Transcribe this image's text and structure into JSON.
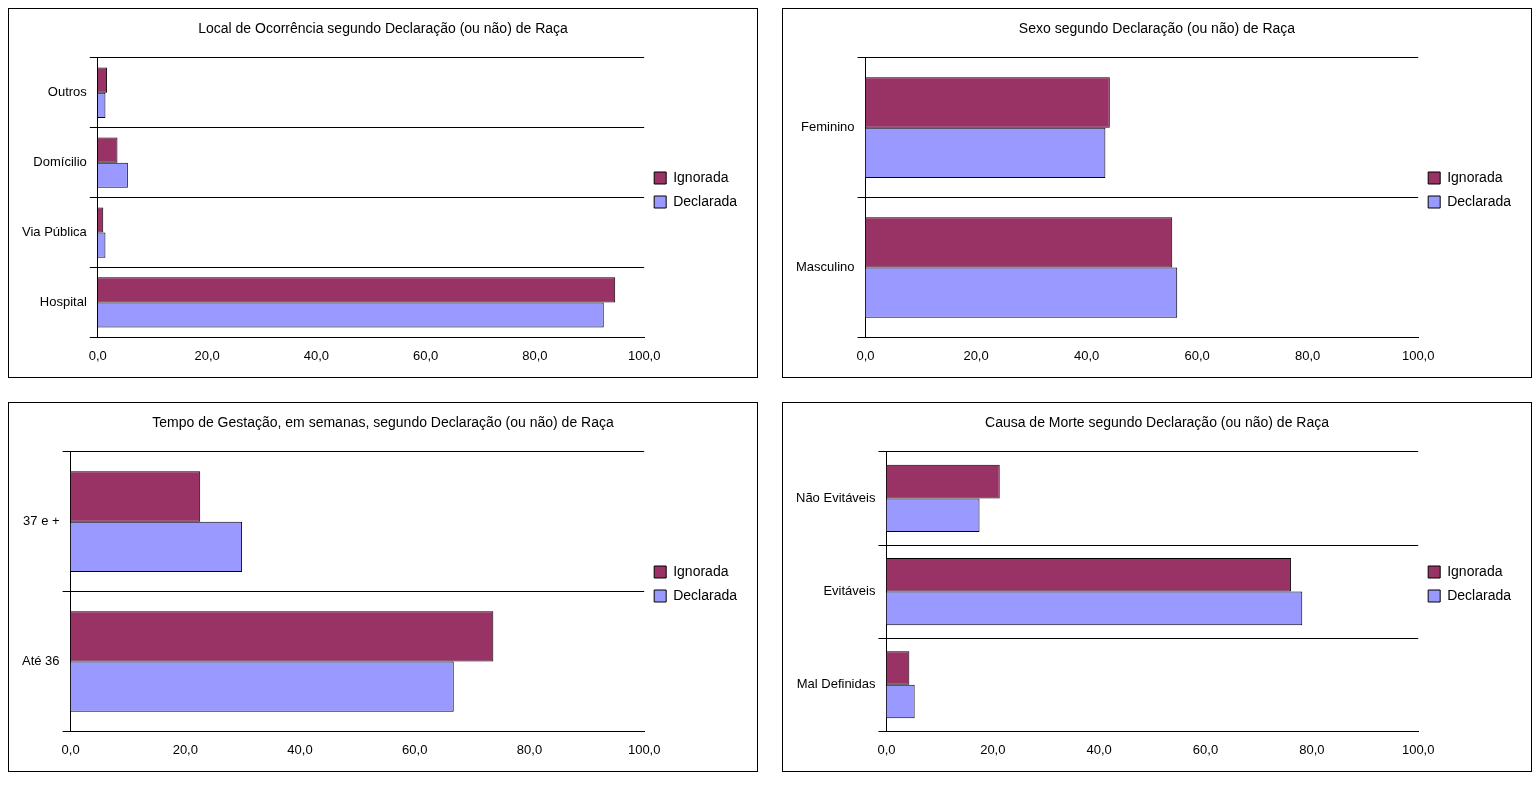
{
  "chart_data": [
    {
      "type": "bar",
      "orientation": "horizontal",
      "title": "Local de Ocorrência segundo Declaração (ou não) de Raça",
      "categories": [
        "Outros",
        "Domícilio",
        "Via Pública",
        "Hospital"
      ],
      "series": [
        {
          "name": "Ignorada",
          "color": "#993366",
          "values": [
            1.7,
            3.6,
            1.0,
            94.7
          ]
        },
        {
          "name": "Declarada",
          "color": "#9999ff",
          "values": [
            1.4,
            5.5,
            1.4,
            92.6
          ]
        }
      ],
      "xlim": [
        0,
        100
      ],
      "xticks": [
        {
          "value": 0,
          "label": "0,0"
        },
        {
          "value": 20,
          "label": "20,0"
        },
        {
          "value": 40,
          "label": "40,0"
        },
        {
          "value": 60,
          "label": "60,0"
        },
        {
          "value": 80,
          "label": "80,0"
        },
        {
          "value": 100,
          "label": "100,0"
        }
      ],
      "grid": "y",
      "legend": "right"
    },
    {
      "type": "bar",
      "orientation": "horizontal",
      "title": "Sexo segundo Declaração (ou não) de Raça",
      "categories": [
        "Feminino",
        "Masculino"
      ],
      "series": [
        {
          "name": "Ignorada",
          "color": "#993366",
          "values": [
            44.2,
            55.5
          ]
        },
        {
          "name": "Declarada",
          "color": "#9999ff",
          "values": [
            43.4,
            56.4
          ]
        }
      ],
      "xlim": [
        0,
        100
      ],
      "xticks": [
        {
          "value": 0,
          "label": "0,0"
        },
        {
          "value": 20,
          "label": "20,0"
        },
        {
          "value": 40,
          "label": "40,0"
        },
        {
          "value": 60,
          "label": "60,0"
        },
        {
          "value": 80,
          "label": "80,0"
        },
        {
          "value": 100,
          "label": "100,0"
        }
      ],
      "grid": "y",
      "legend": "right"
    },
    {
      "type": "bar",
      "orientation": "horizontal",
      "title": "Tempo de Gestação, em semanas, segundo Declaração (ou não) de Raça",
      "categories": [
        "37 e +",
        "Até 36"
      ],
      "series": [
        {
          "name": "Ignorada",
          "color": "#993366",
          "values": [
            22.6,
            73.7
          ]
        },
        {
          "name": "Declarada",
          "color": "#9999ff",
          "values": [
            29.9,
            66.8
          ]
        }
      ],
      "xlim": [
        0,
        100
      ],
      "xticks": [
        {
          "value": 0,
          "label": "0,0"
        },
        {
          "value": 20,
          "label": "20,0"
        },
        {
          "value": 40,
          "label": "40,0"
        },
        {
          "value": 60,
          "label": "60,0"
        },
        {
          "value": 80,
          "label": "80,0"
        },
        {
          "value": 100,
          "label": "100,0"
        }
      ],
      "grid": "y",
      "legend": "right"
    },
    {
      "type": "bar",
      "orientation": "horizontal",
      "title": "Causa de Morte segundo Declaração (ou não) de Raça",
      "categories": [
        "Não Evitáveis",
        "Evitáveis",
        "Mal Definidas"
      ],
      "series": [
        {
          "name": "Ignorada",
          "color": "#993366",
          "values": [
            21.3,
            76.1,
            4.3
          ]
        },
        {
          "name": "Declarada",
          "color": "#9999ff",
          "values": [
            17.5,
            78.2,
            5.3
          ]
        }
      ],
      "xlim": [
        0,
        100
      ],
      "xticks": [
        {
          "value": 0,
          "label": "0,0"
        },
        {
          "value": 20,
          "label": "20,0"
        },
        {
          "value": 40,
          "label": "40,0"
        },
        {
          "value": 60,
          "label": "60,0"
        },
        {
          "value": 80,
          "label": "80,0"
        },
        {
          "value": 100,
          "label": "100,0"
        }
      ],
      "grid": "y",
      "legend": "right"
    }
  ]
}
